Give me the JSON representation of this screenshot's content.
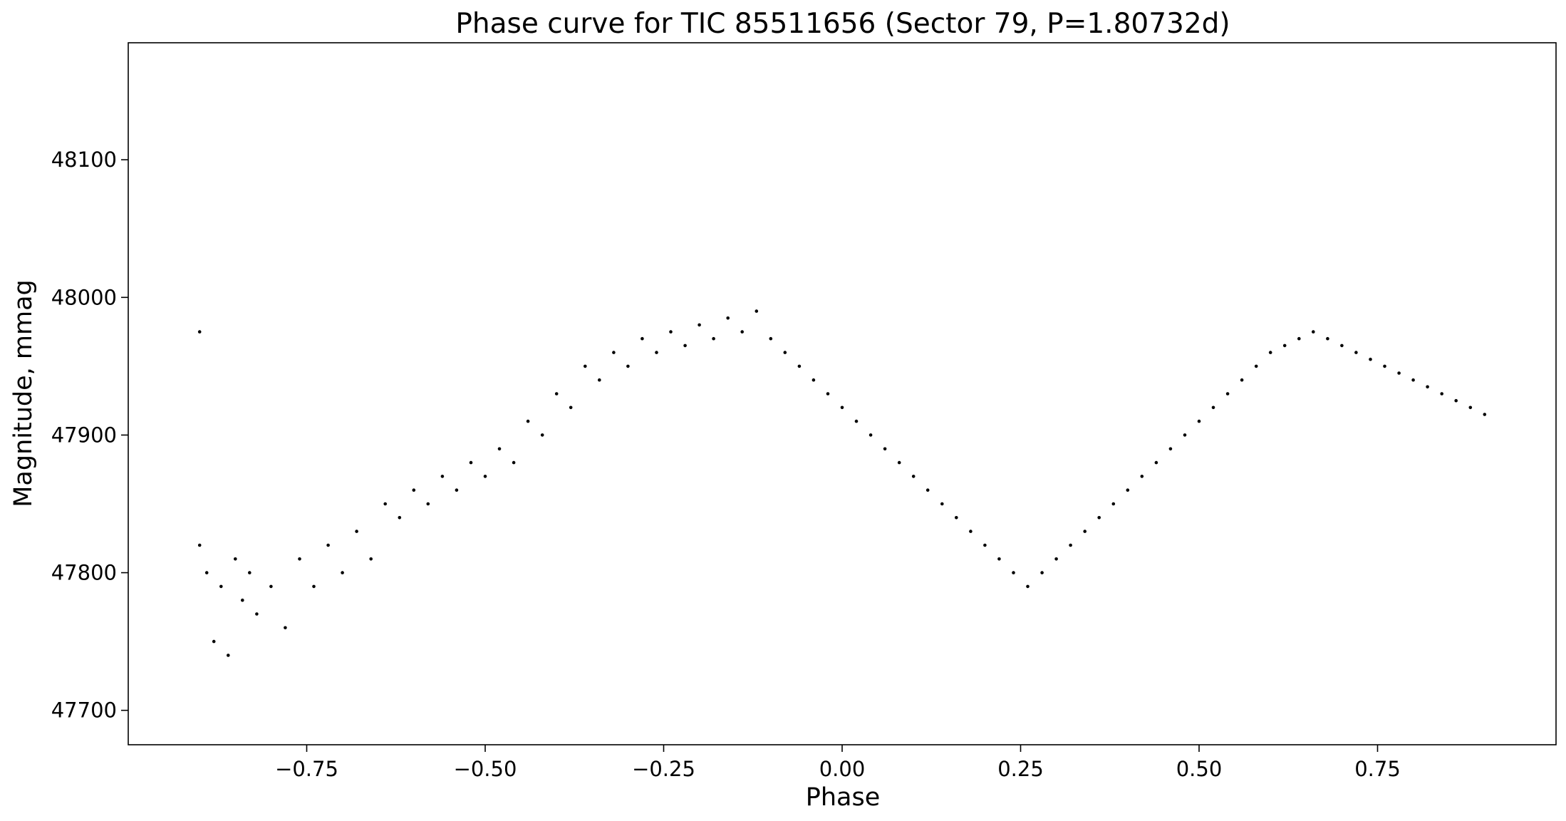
{
  "chart_data": {
    "type": "scatter",
    "title": "Phase curve for TIC 85511656 (Sector 79, P=1.80732d)",
    "xlabel": "Phase",
    "ylabel": "Magnitude, mmag",
    "xlim": [
      -1.0,
      1.0
    ],
    "ylim": [
      47675,
      48185
    ],
    "x_ticks": [
      -0.75,
      -0.5,
      -0.25,
      0.0,
      0.25,
      0.5,
      0.75
    ],
    "x_tick_labels": [
      "−0.75",
      "−0.50",
      "−0.25",
      "0.00",
      "0.25",
      "0.50",
      "0.75"
    ],
    "y_ticks": [
      47700,
      47800,
      47900,
      48000,
      48100
    ],
    "y_tick_labels": [
      "47700",
      "47800",
      "47900",
      "48000",
      "48100"
    ],
    "grid": false,
    "marker_color": "#000000",
    "series": [
      {
        "points": [
          [
            -0.9,
            47820
          ],
          [
            -0.9,
            47975
          ],
          [
            -0.89,
            47800
          ],
          [
            -0.88,
            47750
          ],
          [
            -0.87,
            47790
          ],
          [
            -0.86,
            47740
          ],
          [
            -0.85,
            47810
          ],
          [
            -0.84,
            47780
          ],
          [
            -0.83,
            47800
          ],
          [
            -0.82,
            47770
          ],
          [
            -0.8,
            47790
          ],
          [
            -0.78,
            47760
          ],
          [
            -0.76,
            47810
          ],
          [
            -0.74,
            47790
          ],
          [
            -0.72,
            47820
          ],
          [
            -0.7,
            47800
          ],
          [
            -0.68,
            47830
          ],
          [
            -0.66,
            47810
          ],
          [
            -0.64,
            47850
          ],
          [
            -0.62,
            47840
          ],
          [
            -0.6,
            47860
          ],
          [
            -0.58,
            47850
          ],
          [
            -0.56,
            47870
          ],
          [
            -0.54,
            47860
          ],
          [
            -0.52,
            47880
          ],
          [
            -0.5,
            47870
          ],
          [
            -0.48,
            47890
          ],
          [
            -0.46,
            47880
          ],
          [
            -0.44,
            47910
          ],
          [
            -0.42,
            47900
          ],
          [
            -0.4,
            47930
          ],
          [
            -0.38,
            47920
          ],
          [
            -0.36,
            47950
          ],
          [
            -0.34,
            47940
          ],
          [
            -0.32,
            47960
          ],
          [
            -0.3,
            47950
          ],
          [
            -0.28,
            47970
          ],
          [
            -0.26,
            47960
          ],
          [
            -0.24,
            47975
          ],
          [
            -0.22,
            47965
          ],
          [
            -0.2,
            47980
          ],
          [
            -0.18,
            47970
          ],
          [
            -0.16,
            47985
          ],
          [
            -0.14,
            47975
          ],
          [
            -0.12,
            47990
          ],
          [
            -0.1,
            47970
          ],
          [
            -0.08,
            47960
          ],
          [
            -0.06,
            47950
          ],
          [
            -0.04,
            47940
          ],
          [
            -0.02,
            47930
          ],
          [
            0.0,
            47920
          ],
          [
            0.02,
            47910
          ],
          [
            0.04,
            47900
          ],
          [
            0.06,
            47890
          ],
          [
            0.08,
            47880
          ],
          [
            0.1,
            47870
          ],
          [
            0.12,
            47860
          ],
          [
            0.14,
            47850
          ],
          [
            0.16,
            47840
          ],
          [
            0.18,
            47830
          ],
          [
            0.2,
            47820
          ],
          [
            0.22,
            47810
          ],
          [
            0.24,
            47800
          ],
          [
            0.26,
            47790
          ],
          [
            0.28,
            47800
          ],
          [
            0.3,
            47810
          ],
          [
            0.32,
            47820
          ],
          [
            0.34,
            47830
          ],
          [
            0.36,
            47840
          ],
          [
            0.38,
            47850
          ],
          [
            0.4,
            47860
          ],
          [
            0.42,
            47870
          ],
          [
            0.44,
            47880
          ],
          [
            0.46,
            47890
          ],
          [
            0.48,
            47900
          ],
          [
            0.5,
            47910
          ],
          [
            0.52,
            47920
          ],
          [
            0.54,
            47930
          ],
          [
            0.56,
            47940
          ],
          [
            0.58,
            47950
          ],
          [
            0.6,
            47960
          ],
          [
            0.62,
            47965
          ],
          [
            0.64,
            47970
          ],
          [
            0.66,
            47975
          ],
          [
            0.68,
            47970
          ],
          [
            0.7,
            47965
          ],
          [
            0.72,
            47960
          ],
          [
            0.74,
            47955
          ],
          [
            0.76,
            47950
          ],
          [
            0.78,
            47945
          ],
          [
            0.8,
            47940
          ],
          [
            0.82,
            47935
          ],
          [
            0.84,
            47930
          ],
          [
            0.86,
            47925
          ],
          [
            0.88,
            47920
          ],
          [
            0.9,
            47915
          ]
        ]
      }
    ]
  }
}
